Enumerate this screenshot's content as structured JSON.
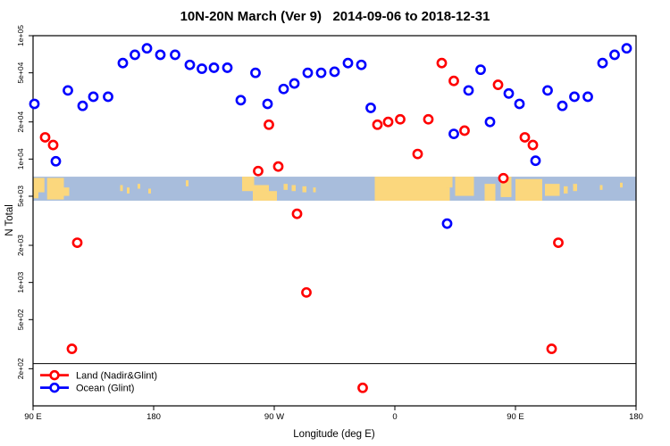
{
  "title": "10N-20N March (Ver 9)   2014-09-06 to 2018-12-31",
  "axes": {
    "x_label": "Longitude (deg E)",
    "y_label": "N Total",
    "x_scale": "linear",
    "x_range_deg_east": [
      90,
      540
    ],
    "x_ticks": [
      {
        "value": 90,
        "label": "90 E"
      },
      {
        "value": 180,
        "label": "180"
      },
      {
        "value": 270,
        "label": "90 W"
      },
      {
        "value": 360,
        "label": "0"
      },
      {
        "value": 450,
        "label": "90 E"
      },
      {
        "value": 540,
        "label": "180"
      }
    ],
    "y_scale": "log",
    "y_range": [
      100,
      100000
    ],
    "y_ticks": [
      {
        "value": 100000,
        "label": "1e+05"
      },
      {
        "value": 50000,
        "label": "5e+04"
      },
      {
        "value": 20000,
        "label": "2e+04"
      },
      {
        "value": 10000,
        "label": "1e+04"
      },
      {
        "value": 5000,
        "label": "5e+03"
      },
      {
        "value": 2000,
        "label": "2e+03"
      },
      {
        "value": 1000,
        "label": "1e+03"
      },
      {
        "value": 500,
        "label": "5e+02"
      },
      {
        "value": 200,
        "label": "2e+02"
      }
    ],
    "grid": false
  },
  "chart_data": {
    "type": "scatter",
    "title": "10N-20N March (Ver 9)   2014-09-06 to 2018-12-31",
    "xlabel": "Longitude (deg E)",
    "ylabel": "N Total",
    "marker": "open-circle",
    "legend_position": "bottom-left",
    "reference_line_n": 220,
    "series": [
      {
        "name": "Land (Nadir&Glint)",
        "color": "#ff0000",
        "points": [
          [
            99,
            15000
          ],
          [
            105,
            13000
          ],
          [
            119,
            290
          ],
          [
            123,
            2100
          ],
          [
            258,
            8000
          ],
          [
            266,
            19000
          ],
          [
            273,
            8700
          ],
          [
            287,
            3600
          ],
          [
            294,
            830
          ],
          [
            336,
            140
          ],
          [
            347,
            19000
          ],
          [
            355,
            20000
          ],
          [
            364,
            21000
          ],
          [
            377,
            11000
          ],
          [
            385,
            21000
          ],
          [
            395,
            60000
          ],
          [
            404,
            43000
          ],
          [
            412,
            17000
          ],
          [
            437,
            40000
          ],
          [
            441,
            7000
          ],
          [
            457,
            15000
          ],
          [
            463,
            13000
          ],
          [
            477,
            290
          ],
          [
            482,
            2100
          ]
        ]
      },
      {
        "name": "Ocean (Glint)",
        "color": "#0000ff",
        "points": [
          [
            91,
            28000
          ],
          [
            107,
            9600
          ],
          [
            116,
            36000
          ],
          [
            127,
            27000
          ],
          [
            135,
            32000
          ],
          [
            146,
            32000
          ],
          [
            157,
            60000
          ],
          [
            166,
            70000
          ],
          [
            175,
            79000
          ],
          [
            185,
            70000
          ],
          [
            196,
            70000
          ],
          [
            207,
            58000
          ],
          [
            216,
            54000
          ],
          [
            225,
            55000
          ],
          [
            235,
            55000
          ],
          [
            245,
            30000
          ],
          [
            256,
            50000
          ],
          [
            265,
            28000
          ],
          [
            277,
            37000
          ],
          [
            285,
            41000
          ],
          [
            295,
            50000
          ],
          [
            305,
            50000
          ],
          [
            315,
            51000
          ],
          [
            325,
            60000
          ],
          [
            335,
            58000
          ],
          [
            342,
            26000
          ],
          [
            399,
            3000
          ],
          [
            404,
            16000
          ],
          [
            415,
            36000
          ],
          [
            424,
            53000
          ],
          [
            431,
            20000
          ],
          [
            445,
            34000
          ],
          [
            453,
            28000
          ],
          [
            465,
            9700
          ],
          [
            474,
            36000
          ],
          [
            485,
            27000
          ],
          [
            494,
            32000
          ],
          [
            504,
            32000
          ],
          [
            515,
            60000
          ],
          [
            524,
            70000
          ],
          [
            533,
            79000
          ]
        ]
      }
    ],
    "map_band": {
      "n_top": 7200,
      "n_bottom": 4600,
      "ocean_color": "#a8bddc",
      "land_color": "#fbd77d",
      "land_patches": [
        [
          90,
          98.5,
          0.05,
          0.65
        ],
        [
          90,
          94,
          0.6,
          0.9
        ],
        [
          100.5,
          113,
          0.05,
          0.95
        ],
        [
          113,
          117,
          0.45,
          0.8
        ],
        [
          155,
          157,
          0.35,
          0.6
        ],
        [
          160,
          162,
          0.45,
          0.7
        ],
        [
          168,
          170,
          0.3,
          0.5
        ],
        [
          176,
          178,
          0.5,
          0.7
        ],
        [
          204,
          206,
          0.15,
          0.4
        ],
        [
          246,
          255,
          0.0,
          0.6
        ],
        [
          254,
          266,
          0.35,
          1.0
        ],
        [
          266,
          272,
          0.6,
          1.0
        ],
        [
          277,
          280,
          0.3,
          0.55
        ],
        [
          283,
          286,
          0.35,
          0.6
        ],
        [
          291,
          294,
          0.4,
          0.65
        ],
        [
          299,
          301,
          0.45,
          0.65
        ],
        [
          345,
          401,
          0.0,
          1.0
        ],
        [
          398,
          403,
          0.0,
          0.45
        ],
        [
          405,
          419,
          0.0,
          0.8
        ],
        [
          427,
          435,
          0.3,
          1.0
        ],
        [
          439,
          447,
          0.0,
          0.85
        ],
        [
          450,
          470,
          0.1,
          1.0
        ],
        [
          472,
          483,
          0.3,
          0.8
        ],
        [
          486,
          489,
          0.4,
          0.7
        ],
        [
          493,
          496,
          0.3,
          0.6
        ],
        [
          513,
          515,
          0.35,
          0.55
        ],
        [
          528,
          530,
          0.25,
          0.45
        ]
      ]
    }
  },
  "legend": {
    "entries": [
      {
        "label": "Land (Nadir&Glint)",
        "color": "#ff0000"
      },
      {
        "label": "Ocean (Glint)",
        "color": "#0000ff"
      }
    ]
  }
}
